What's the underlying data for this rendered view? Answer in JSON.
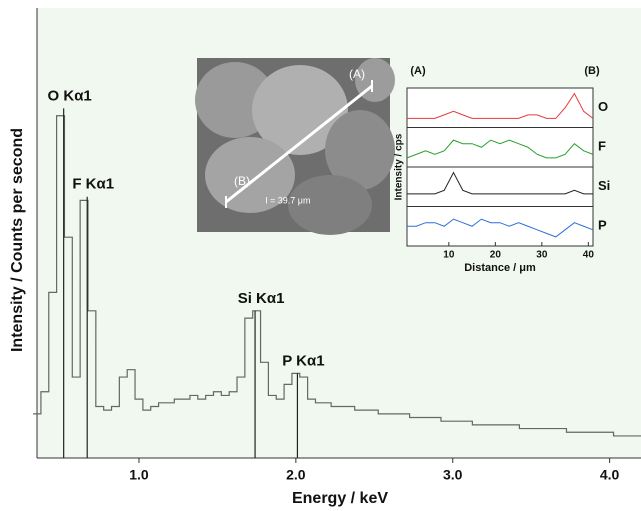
{
  "chart_data": [
    {
      "type": "line",
      "x_label": "Energy / keV",
      "y_label": "Intensity / Counts per second",
      "x": [
        0.35,
        0.4,
        0.45,
        0.5,
        0.55,
        0.6,
        0.65,
        0.7,
        0.75,
        0.8,
        0.85,
        0.9,
        0.95,
        1.0,
        1.05,
        1.1,
        1.15,
        1.2,
        1.25,
        1.3,
        1.35,
        1.4,
        1.45,
        1.5,
        1.55,
        1.6,
        1.65,
        1.7,
        1.75,
        1.8,
        1.85,
        1.9,
        1.95,
        2.0,
        2.05,
        2.1,
        2.15,
        2.2,
        2.25,
        2.3,
        2.35,
        2.4,
        2.45,
        2.5,
        2.55,
        2.6,
        2.65,
        2.7,
        2.75,
        2.8,
        2.85,
        2.9,
        2.95,
        3.0,
        3.05,
        3.1,
        3.15,
        3.2,
        3.25,
        3.3,
        3.35,
        3.4,
        3.45,
        3.5,
        3.55,
        3.6,
        3.65,
        3.7,
        3.75,
        3.8,
        3.85,
        3.9,
        3.95,
        4.0,
        4.05,
        4.1,
        4.15,
        4.2
      ],
      "values": [
        12,
        18,
        45,
        93,
        60,
        22,
        70,
        40,
        14,
        13,
        14,
        22,
        24,
        16,
        13,
        14,
        15,
        15,
        16,
        16,
        17,
        16,
        17,
        18,
        17,
        18,
        22,
        38,
        40,
        26,
        17,
        16,
        20,
        23,
        22,
        16,
        15,
        15,
        14,
        14,
        14,
        13,
        13,
        13,
        12,
        12,
        12,
        12,
        11,
        11,
        11,
        11,
        10,
        10,
        10,
        10,
        9,
        9,
        9,
        9,
        9,
        9,
        8,
        8,
        8,
        8,
        8,
        8,
        7,
        7,
        7,
        7,
        7,
        7,
        6,
        6,
        6,
        6
      ],
      "color": "#666666",
      "xlim": [
        0.35,
        4.2
      ],
      "ylim": [
        0,
        100
      ],
      "xticks": [
        {
          "value": 1,
          "label": "1.0"
        },
        {
          "value": 2,
          "label": "2.0"
        },
        {
          "value": 3,
          "label": "3.0"
        },
        {
          "value": 4,
          "label": "4.0"
        }
      ],
      "peaks": [
        {
          "label": "O Kα1",
          "x": 0.52,
          "y": 95
        },
        {
          "label": "F Kα1",
          "x": 0.67,
          "y": 71
        },
        {
          "label": "Si Kα1",
          "x": 1.74,
          "y": 40
        },
        {
          "label": "P Kα1",
          "x": 2.01,
          "y": 23
        }
      ]
    },
    {
      "type": "line-profile",
      "x_label": "Distance / μm",
      "y_label": "Intensity / cps",
      "endpoint_labels": [
        "(A)",
        "(B)"
      ],
      "image_annotations": [
        "(A)",
        "(B)",
        "l = 39.7 μm"
      ],
      "x": [
        1,
        3,
        5,
        7,
        9,
        11,
        13,
        15,
        17,
        19,
        21,
        23,
        25,
        27,
        29,
        31,
        33,
        35,
        37,
        39,
        41
      ],
      "xlim": [
        1,
        41
      ],
      "xticks": [
        10,
        20,
        30,
        40
      ],
      "ylim": [
        0,
        10
      ],
      "series": [
        {
          "name": "O",
          "color": "#e8393c",
          "values": [
            2,
            2,
            2,
            2,
            3,
            4,
            3,
            2,
            2,
            2,
            2,
            2,
            2,
            3,
            3,
            2,
            2,
            5,
            9,
            4,
            2
          ]
        },
        {
          "name": "F",
          "color": "#2aa02a",
          "values": [
            2,
            3,
            4,
            3,
            4,
            7,
            6,
            6,
            5,
            7,
            6,
            7,
            6,
            5,
            3,
            2,
            2,
            3,
            6,
            4,
            3
          ]
        },
        {
          "name": "Si",
          "color": "#222222",
          "values": [
            3,
            3,
            3,
            3,
            4,
            9,
            4,
            3,
            3,
            3,
            3,
            3,
            3,
            3,
            3,
            3,
            3,
            3,
            4,
            3,
            3
          ]
        },
        {
          "name": "P",
          "color": "#2f6fd8",
          "values": [
            5,
            5,
            6,
            6,
            5,
            7,
            6,
            5,
            7,
            6,
            6,
            5,
            6,
            5,
            4,
            3,
            2,
            4,
            6,
            5,
            4
          ]
        }
      ]
    }
  ]
}
